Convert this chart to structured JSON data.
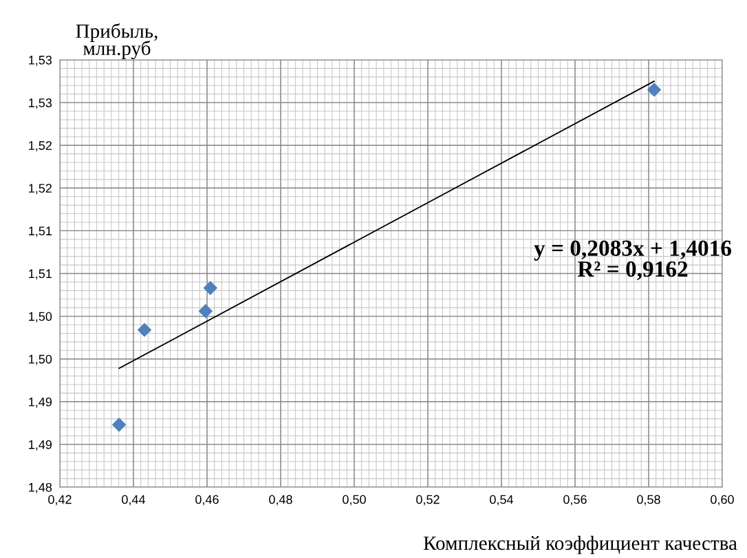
{
  "chart_data": {
    "type": "scatter",
    "ylabel": "Прибыль,\nмлн.руб",
    "xlabel": "Комплексный коэффициент качества",
    "annotations": [
      "y = 0,2083x + 1,4016\nR² = 0,9162"
    ],
    "series": [
      {
        "color": "#4f81bd",
        "marker": "diamond",
        "x": [
          0.4361,
          0.443,
          0.4596,
          0.4609,
          0.5815
        ],
        "values": [
          1.4873,
          1.4984,
          1.5006,
          1.5033,
          1.5265
        ]
      },
      {
        "type": "line",
        "color": "#000000",
        "marker": "none",
        "line_style": "solid",
        "x": [
          0.4361,
          0.5815
        ],
        "values": [
          1.4939,
          1.5275
        ]
      }
    ],
    "xlim": [
      0.42,
      0.6
    ],
    "xticks": [
      {
        "value": 0.42,
        "label": "0,42"
      },
      {
        "value": 0.44,
        "label": "0,44"
      },
      {
        "value": 0.46,
        "label": "0,46"
      },
      {
        "value": 0.48,
        "label": "0,48"
      },
      {
        "value": 0.5,
        "label": "0,50"
      },
      {
        "value": 0.52,
        "label": "0,52"
      },
      {
        "value": 0.54,
        "label": "0,54"
      },
      {
        "value": 0.56,
        "label": "0,56"
      },
      {
        "value": 0.58,
        "label": "0,58"
      },
      {
        "value": 0.6,
        "label": "0,60"
      }
    ],
    "ylim": [
      1.48,
      1.53
    ],
    "yticks": [
      {
        "value": 1.48,
        "label": "1,48"
      },
      {
        "value": 1.485,
        "label": "1,49"
      },
      {
        "value": 1.49,
        "label": "1,49"
      },
      {
        "value": 1.495,
        "label": "1,50"
      },
      {
        "value": 1.5,
        "label": "1,50"
      },
      {
        "value": 1.505,
        "label": "1,51"
      },
      {
        "value": 1.51,
        "label": "1,51"
      },
      {
        "value": 1.515,
        "label": "1,52"
      },
      {
        "value": 1.52,
        "label": "1,52"
      },
      {
        "value": 1.525,
        "label": "1,53"
      },
      {
        "value": 1.53,
        "label": "1,53"
      }
    ],
    "grid": true,
    "legend": false
  }
}
